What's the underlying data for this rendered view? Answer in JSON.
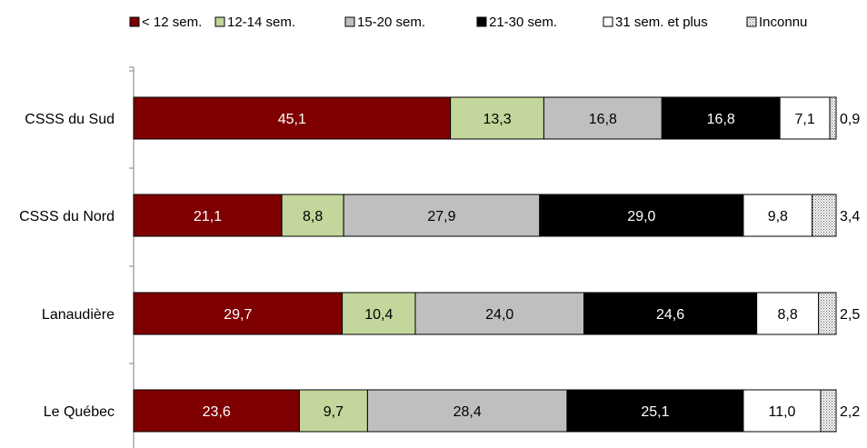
{
  "chart_data": {
    "type": "bar",
    "orientation": "horizontal",
    "stacked": true,
    "unit": "percent",
    "xlim": [
      0,
      100
    ],
    "grid": false,
    "legend_position": "top",
    "categories": [
      "CSSS du Sud",
      "CSSS du Nord",
      "Lanaudière",
      "Le Québec"
    ],
    "series": [
      {
        "name": "< 12 sem.",
        "color": "#7f0000",
        "label_color": "#ffffff",
        "values": [
          45.1,
          21.1,
          29.7,
          23.6
        ],
        "labels": [
          "45,1",
          "21,1",
          "29,7",
          "23,6"
        ]
      },
      {
        "name": "12-14 sem.",
        "color": "#c3d69b",
        "label_color": "#000000",
        "values": [
          13.3,
          8.8,
          10.4,
          9.7
        ],
        "labels": [
          "13,3",
          "8,8",
          "10,4",
          "9,7"
        ]
      },
      {
        "name": "15-20 sem.",
        "color": "#bfbfbf",
        "label_color": "#000000",
        "values": [
          16.8,
          27.9,
          24.0,
          28.4
        ],
        "labels": [
          "16,8",
          "27,9",
          "24,0",
          "28,4"
        ]
      },
      {
        "name": "21-30 sem.",
        "color": "#000000",
        "label_color": "#ffffff",
        "values": [
          16.8,
          29.0,
          24.6,
          25.1
        ],
        "labels": [
          "16,8",
          "29,0",
          "24,6",
          "25,1"
        ]
      },
      {
        "name": "31 sem. et plus",
        "color": "#ffffff",
        "label_color": "#000000",
        "values": [
          7.1,
          9.8,
          8.8,
          11.0
        ],
        "labels": [
          "7,1",
          "9,8",
          "8,8",
          "11,0"
        ]
      },
      {
        "name": "Inconnu",
        "color": "pattern",
        "label_color": "#000000",
        "label_outside": true,
        "values": [
          0.9,
          3.4,
          2.5,
          2.2
        ],
        "labels": [
          "0,9",
          "3,4",
          "2,5",
          "2,2"
        ]
      }
    ]
  }
}
